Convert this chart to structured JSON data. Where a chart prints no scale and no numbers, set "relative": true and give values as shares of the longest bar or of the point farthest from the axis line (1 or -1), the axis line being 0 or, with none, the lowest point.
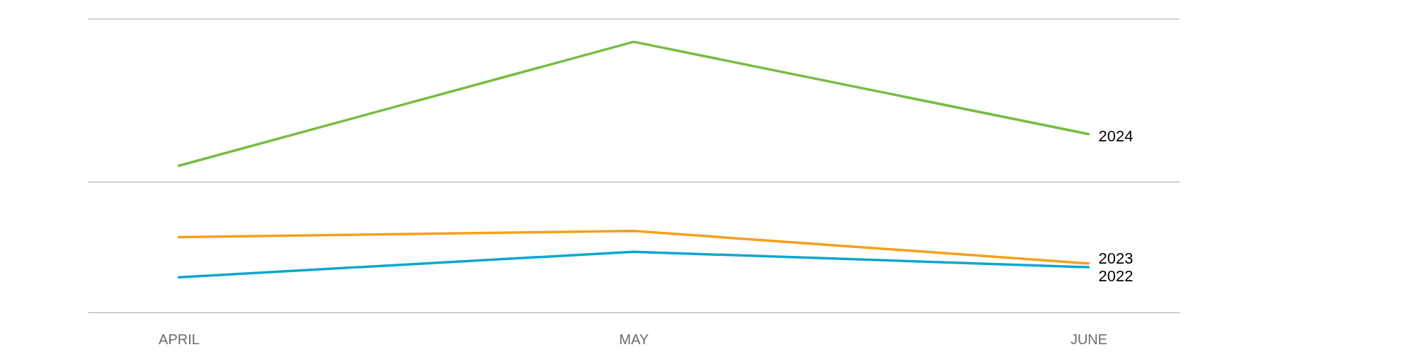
{
  "chart_data": {
    "type": "line",
    "relative": true,
    "categories": [
      "APRIL",
      "MAY",
      "JUNE"
    ],
    "series": [
      {
        "name": "2024",
        "color": "#76bc43",
        "values": [
          0.542,
          1,
          0.659
        ]
      },
      {
        "name": "2023",
        "color": "#f5a01a",
        "values": [
          0.278,
          0.301,
          0.181
        ]
      },
      {
        "name": "2022",
        "color": "#0aa7cf",
        "values": [
          0.13,
          0.224,
          0.167
        ]
      }
    ],
    "ref_lines": [
      {
        "axis": "y",
        "value": 0.482,
        "color": "#a6a6a6"
      },
      {
        "axis": "y",
        "value": 1.084,
        "color": "#a6a6a6"
      }
    ],
    "legend": false,
    "marker": "none",
    "line_style": "solid"
  }
}
